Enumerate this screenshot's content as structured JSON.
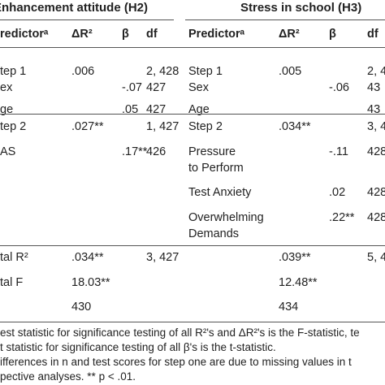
{
  "table": {
    "groups": [
      "Enhancement attitude (H2)",
      "Stress in school (H3)"
    ],
    "header": [
      "redictorᵃ",
      "ΔR²",
      "β",
      "df",
      "Predictorᵃ",
      "ΔR²",
      "β",
      "df"
    ],
    "rows": [
      [
        "tep 1",
        ".006",
        null,
        "2, 428",
        "Step 1",
        ".005",
        null,
        "2, 4"
      ],
      [
        "ex",
        null,
        "-.07",
        "427",
        "Sex",
        null,
        "-.06",
        "43"
      ],
      [
        "ge",
        null,
        ".05",
        "427",
        "Age",
        null,
        null,
        "43"
      ],
      [
        "tep 2",
        ".027**",
        null,
        "1, 427",
        "Step 2",
        ".034**",
        null,
        "3, 4"
      ],
      [
        "AS",
        null,
        ".17**",
        "426",
        "Pressure\nto Perform",
        null,
        "-.11",
        "428"
      ],
      [
        null,
        null,
        null,
        null,
        "Test Anxiety",
        null,
        ".02",
        "428"
      ],
      [
        null,
        null,
        null,
        null,
        "Overwhelming\nDemands",
        null,
        ".22**",
        "428"
      ],
      [
        "tal R²",
        ".034**",
        null,
        "3, 427",
        null,
        ".039**",
        null,
        "5, 4"
      ],
      [
        "tal F",
        "18.03**",
        null,
        null,
        null,
        "12.48**",
        null,
        null
      ],
      [
        null,
        "430",
        null,
        null,
        null,
        "434",
        null,
        null
      ]
    ],
    "notes": [
      "est statistic for significance testing of all R²'s and ΔR²'s is the F-statistic, te",
      "t statistic for significance testing of all β's is the t-statistic.",
      "ifferences in n and test scores for step one are due to missing values in t",
      "pective analyses. ** p < .01."
    ]
  }
}
